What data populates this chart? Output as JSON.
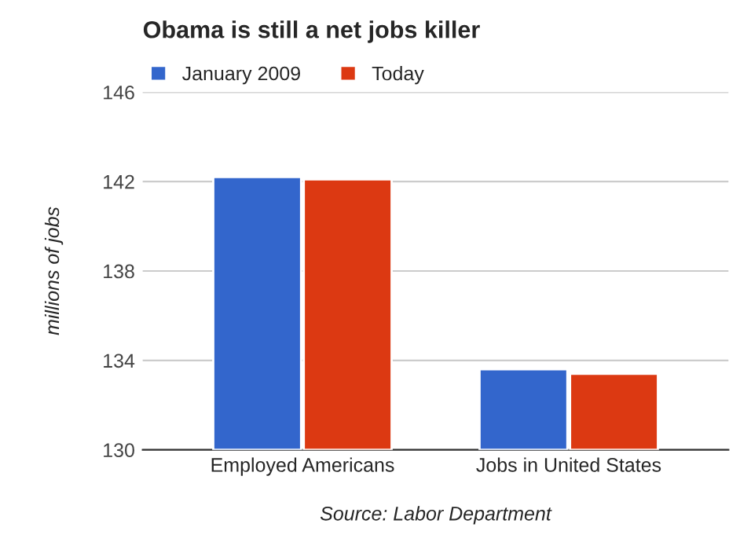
{
  "chart_data": {
    "type": "bar",
    "title": "Obama is still a net jobs killer",
    "ylabel": "millions of jobs",
    "categories": [
      "Employed Americans",
      "Jobs in United States"
    ],
    "series": [
      {
        "name": "January 2009",
        "color": "#3366cc",
        "values": [
          142.2,
          133.6
        ]
      },
      {
        "name": "Today",
        "color": "#dc3912",
        "values": [
          142.1,
          133.4
        ]
      }
    ],
    "ylim": [
      130,
      146
    ],
    "yticks": [
      130,
      134,
      138,
      142,
      146
    ],
    "grid": "y",
    "legend": "top left",
    "annotations": [
      "Source: Labor Department"
    ]
  }
}
